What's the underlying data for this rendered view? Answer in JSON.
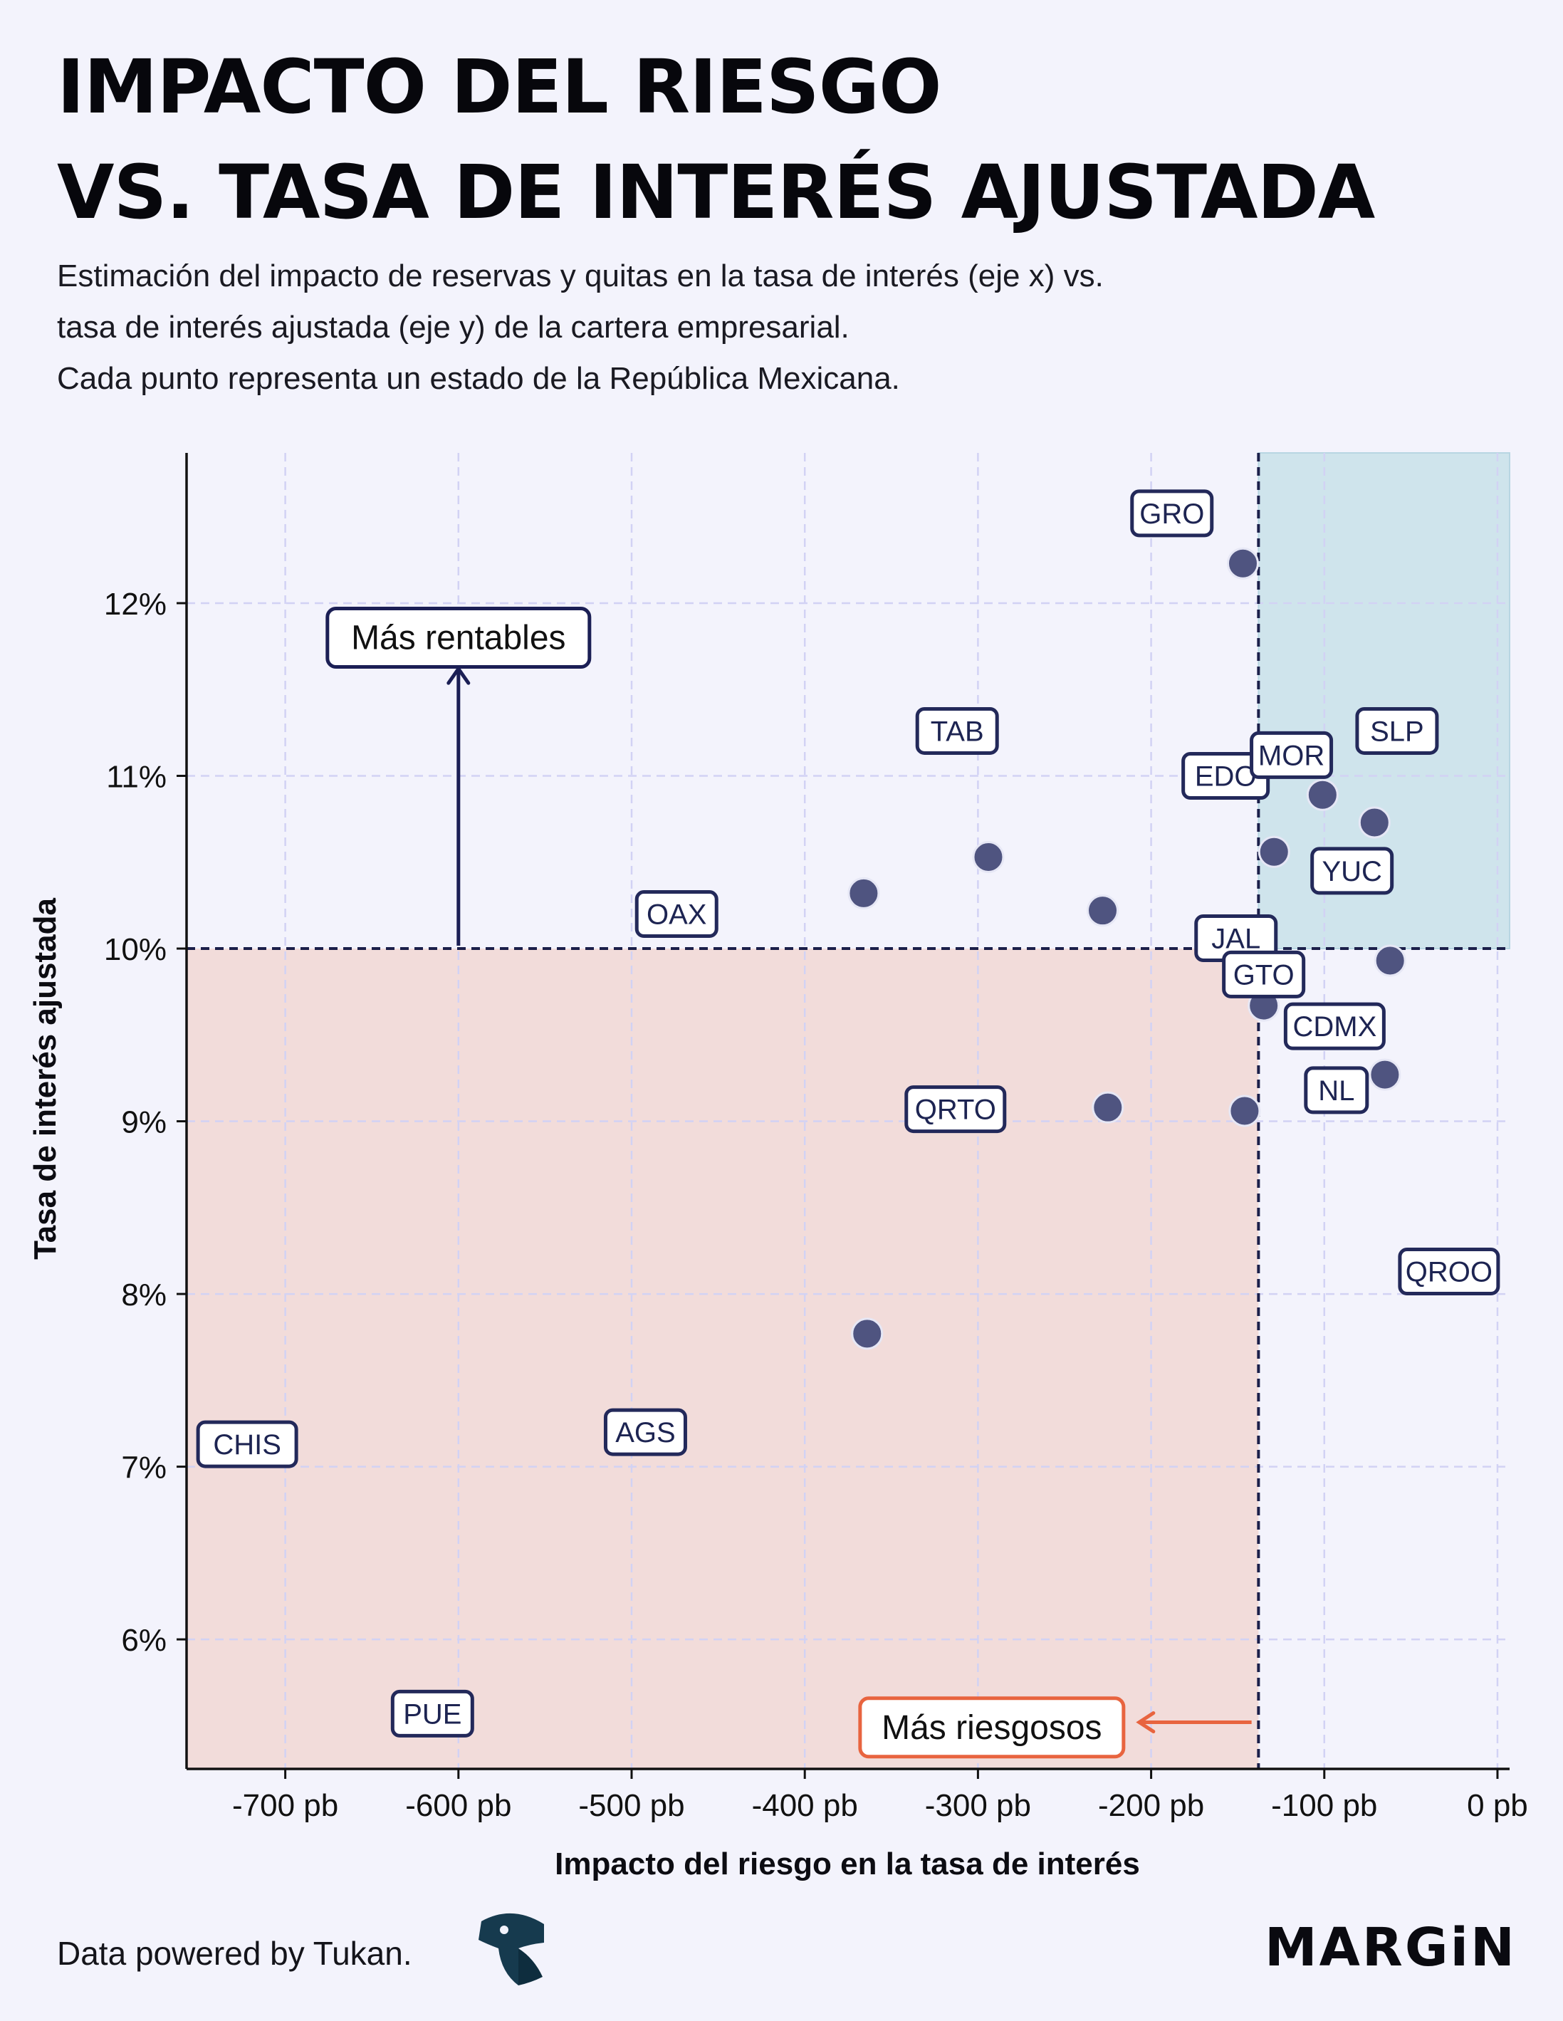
{
  "header": {
    "title_line1": "IMPACTO DEL RIESGO",
    "title_line2": "VS. TASA DE INTERÉS AJUSTADA",
    "subtitle_line1": "Estimación del impacto de reservas y quitas en la tasa de interés (eje x) vs.",
    "subtitle_line2": "tasa de interés ajustada (eje y) de la cartera empresarial.",
    "subtitle_line3": "Cada punto representa un estado de la República Mexicana."
  },
  "footer": {
    "credit": "Data powered by Tukan.",
    "brand": "MARGiN"
  },
  "colors": {
    "point": "#4f5480",
    "label_border": "#23295a",
    "label_text": "#1d2452",
    "risk_region": "#f2dcda",
    "profit_region": "#cfe4ec",
    "grid": "#d2d2f4",
    "reference_line": "#1b1f4a",
    "annotation_up": "#1b1f55",
    "annotation_left": "#e8643f"
  },
  "chart_data": {
    "type": "scatter",
    "title": "IMPACTO DEL RIESGO VS. TASA DE INTERÉS AJUSTADA",
    "xlabel": "Impacto del riesgo en la tasa de interés",
    "ylabel": "Tasa de interés ajustada",
    "xlim": [
      -757,
      7
    ],
    "ylim": [
      5.25,
      12.87
    ],
    "x_ticks": [
      -700,
      -600,
      -500,
      -400,
      -300,
      -200,
      -100,
      0
    ],
    "x_tick_labels": [
      "-700 pb",
      "-600 pb",
      "-500 pb",
      "-400 pb",
      "-300 pb",
      "-200 pb",
      "-100 pb",
      "0 pb"
    ],
    "y_ticks": [
      6,
      7,
      8,
      9,
      10,
      11,
      12
    ],
    "y_tick_labels": [
      "6%",
      "7%",
      "8%",
      "9%",
      "10%",
      "11%",
      "12%"
    ],
    "grid": true,
    "reference_lines": {
      "x": -138,
      "y": 10
    },
    "regions": [
      {
        "name": "riesgo",
        "x": [
          -757,
          -138
        ],
        "y": [
          5.25,
          10
        ]
      },
      {
        "name": "rentable",
        "x": [
          -138,
          7
        ],
        "y": [
          10,
          12.87
        ]
      }
    ],
    "points": [
      {
        "x": -147,
        "y": 12.23
      },
      {
        "x": -294,
        "y": 10.53
      },
      {
        "x": -366,
        "y": 10.32
      },
      {
        "x": -228,
        "y": 10.22
      },
      {
        "x": -129,
        "y": 10.56
      },
      {
        "x": -101,
        "y": 10.89
      },
      {
        "x": -71,
        "y": 10.73
      },
      {
        "x": -62,
        "y": 9.93
      },
      {
        "x": -135,
        "y": 9.67
      },
      {
        "x": -65,
        "y": 9.27
      },
      {
        "x": -225,
        "y": 9.08
      },
      {
        "x": -146,
        "y": 9.06
      },
      {
        "x": -364,
        "y": 7.77
      }
    ],
    "labels": [
      {
        "text": "GRO",
        "x": -188,
        "y": 12.52
      },
      {
        "text": "TAB",
        "x": -312,
        "y": 11.26
      },
      {
        "text": "EDO",
        "x": -157,
        "y": 11.0,
        "width": 70
      },
      {
        "text": "MOR",
        "x": -119,
        "y": 11.12
      },
      {
        "text": "SLP",
        "x": -58,
        "y": 11.26
      },
      {
        "text": "YUC",
        "x": -84,
        "y": 10.45
      },
      {
        "text": "OAX",
        "x": -474,
        "y": 10.2
      },
      {
        "text": "JAL",
        "x": -151,
        "y": 10.06
      },
      {
        "text": "GTO",
        "x": -135,
        "y": 9.85
      },
      {
        "text": "CDMX",
        "x": -94,
        "y": 9.55
      },
      {
        "text": "NL",
        "x": -93,
        "y": 9.18
      },
      {
        "text": "QRTO",
        "x": -313,
        "y": 9.07
      },
      {
        "text": "QROO",
        "x": -28,
        "y": 8.13
      },
      {
        "text": "AGS",
        "x": -492,
        "y": 7.2
      },
      {
        "text": "CHIS",
        "x": -722,
        "y": 7.13
      },
      {
        "text": "PUE",
        "x": -615,
        "y": 5.57
      }
    ],
    "annotations": [
      {
        "text": "Más rentables",
        "x": -600,
        "y": 11.8
      },
      {
        "text": "Más riesgosos",
        "x": -292,
        "y": 5.49
      }
    ]
  }
}
